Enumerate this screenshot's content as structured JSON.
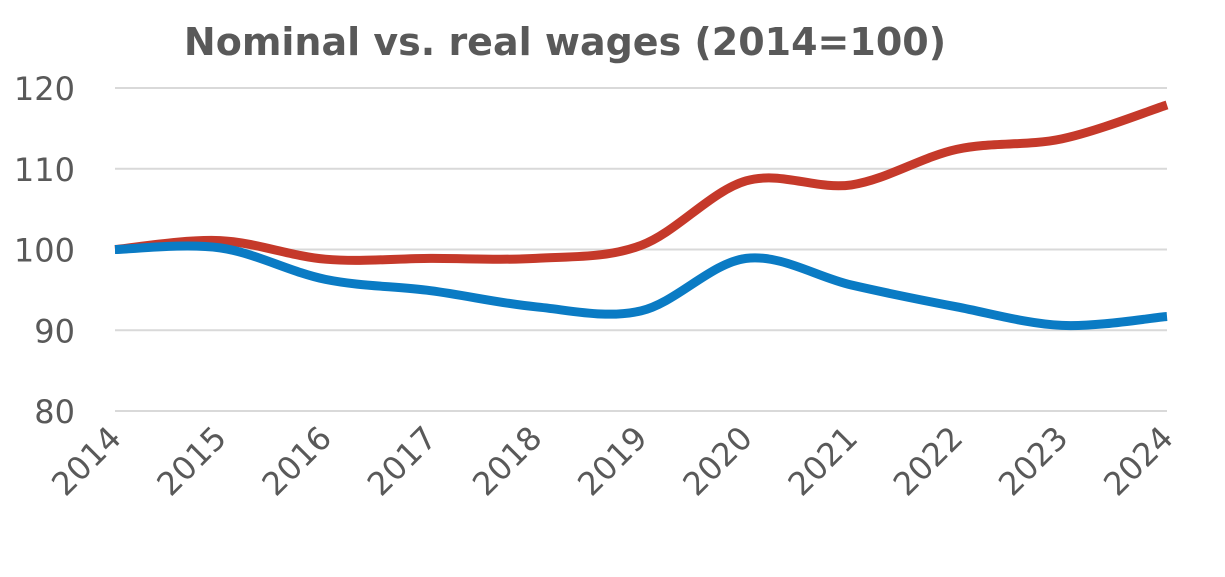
{
  "chart_data": {
    "type": "line",
    "title": "Nominal vs. real  wages (2014=100)",
    "xlabel": "",
    "ylabel": "",
    "x": [
      "2014",
      "2015",
      "2016",
      "2017",
      "2018",
      "2019",
      "2020",
      "2021",
      "2022",
      "2023",
      "2024"
    ],
    "ylim": [
      80,
      120
    ],
    "yticks": [
      80,
      90,
      100,
      110,
      120
    ],
    "grid": true,
    "smooth": true,
    "series": [
      {
        "color": "#c5392a",
        "values": [
          100,
          101.1,
          98.8,
          98.9,
          98.9,
          100.5,
          108.5,
          108.0,
          112.4,
          113.7,
          117.9
        ]
      },
      {
        "color": "#0a7bc4",
        "values": [
          100,
          100.2,
          96.3,
          94.9,
          92.9,
          92.4,
          98.9,
          95.6,
          92.9,
          90.6,
          91.7
        ]
      }
    ]
  }
}
